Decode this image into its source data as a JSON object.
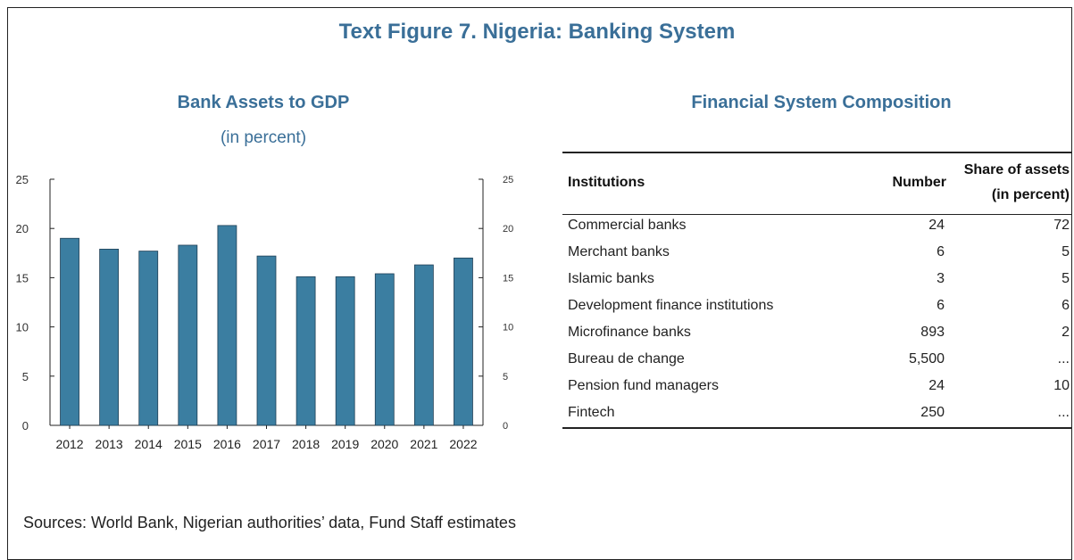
{
  "figure_title": "Text Figure 7. Nigeria: Banking System",
  "chart_title": "Bank Assets to GDP",
  "chart_subtitle": "(in percent)",
  "chart_data": {
    "type": "bar",
    "title": "Bank Assets to GDP",
    "subtitle": "(in percent)",
    "categories": [
      "2012",
      "2013",
      "2014",
      "2015",
      "2016",
      "2017",
      "2018",
      "2019",
      "2020",
      "2021",
      "2022"
    ],
    "values": [
      19.0,
      17.9,
      17.7,
      18.3,
      20.3,
      17.2,
      15.1,
      15.1,
      15.4,
      16.3,
      17.0
    ],
    "ylim": [
      0,
      25
    ],
    "yticks": [
      0,
      5,
      10,
      15,
      20,
      25
    ],
    "xlabel": "",
    "ylabel": "",
    "bar_color": "#3b7ea1",
    "grid": false,
    "dual_axis_labels": true
  },
  "table": {
    "title": "Financial System Composition",
    "headers": {
      "institutions": "Institutions",
      "number": "Number",
      "share_line1": "Share of assets",
      "share_line2": "(in percent)"
    },
    "rows": [
      {
        "institution": "Commercial banks",
        "number": "24",
        "share": "72"
      },
      {
        "institution": "Merchant banks",
        "number": "6",
        "share": "5"
      },
      {
        "institution": "Islamic banks",
        "number": "3",
        "share": "5"
      },
      {
        "institution": "Development finance institutions",
        "number": "6",
        "share": "6"
      },
      {
        "institution": "Microfinance banks",
        "number": "893",
        "share": "2"
      },
      {
        "institution": "Bureau de change",
        "number": "5,500",
        "share": "..."
      },
      {
        "institution": "Pension fund managers",
        "number": "24",
        "share": "10"
      },
      {
        "institution": "Fintech",
        "number": "250",
        "share": "..."
      }
    ]
  },
  "sources": "Sources: World Bank, Nigerian authorities’ data, Fund Staff estimates",
  "colors": {
    "accent": "#3a6f98",
    "bar": "#3b7ea1"
  }
}
